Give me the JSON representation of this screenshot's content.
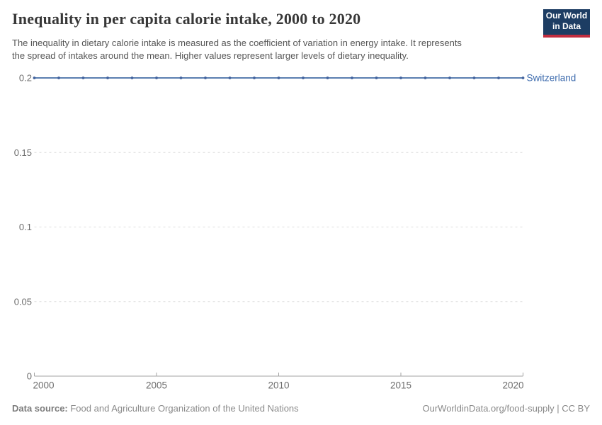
{
  "header": {
    "title": "Inequality in per capita calorie intake, 2000 to 2020",
    "subtitle_line1": "The inequality in dietary calorie intake is measured as the coefficient of variation in energy intake. It represents",
    "subtitle_line2": "the spread of intakes around the mean. Higher values represent larger levels of dietary inequality.",
    "logo_line1": "Our World",
    "logo_line2": "in Data"
  },
  "colors": {
    "line": "#5b7fb0",
    "marker": "#41629e",
    "entity_label": "#3d6bad",
    "grid": "#dcdcdc",
    "axis": "#a3a3a3",
    "tick_label": "#6e6e6e",
    "title": "#383838",
    "logo_bg": "#1d3d63",
    "logo_stripe": "#c22d3f"
  },
  "chart_data": {
    "type": "line",
    "title": "Inequality in per capita calorie intake, 2000 to 2020",
    "xlabel": "",
    "ylabel": "",
    "x": [
      2000,
      2001,
      2002,
      2003,
      2004,
      2005,
      2006,
      2007,
      2008,
      2009,
      2010,
      2011,
      2012,
      2013,
      2014,
      2015,
      2016,
      2017,
      2018,
      2019,
      2020
    ],
    "series": [
      {
        "name": "Switzerland",
        "values": [
          0.2,
          0.2,
          0.2,
          0.2,
          0.2,
          0.2,
          0.2,
          0.2,
          0.2,
          0.2,
          0.2,
          0.2,
          0.2,
          0.2,
          0.2,
          0.2,
          0.2,
          0.2,
          0.2,
          0.2,
          0.2
        ],
        "color": "#5b7fb0",
        "marker_color": "#41629e",
        "label_color": "#3d6bad"
      }
    ],
    "ylim": [
      0,
      0.2
    ],
    "yticks": [
      0,
      0.05,
      0.1,
      0.15,
      0.2
    ],
    "ytick_labels": [
      "0",
      "0.05",
      "0.1",
      "0.15",
      "0.2"
    ],
    "xticks": [
      2000,
      2005,
      2010,
      2015,
      2020
    ],
    "grid": "horizontal-dashed",
    "legend_position": "end-of-line-label"
  },
  "footer": {
    "datasource_label": "Data source:",
    "datasource_value": " Food and Agriculture Organization of the United Nations",
    "attribution": "OurWorldinData.org/food-supply | CC BY"
  }
}
